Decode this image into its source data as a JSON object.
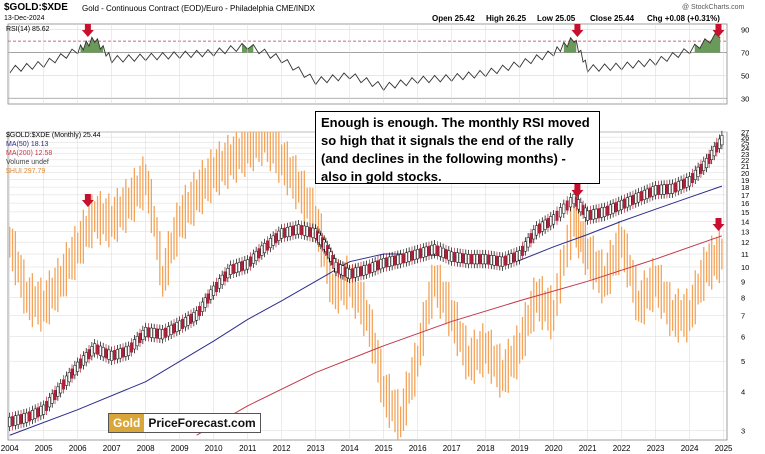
{
  "header": {
    "ticker": "$GOLD:$XDE",
    "description": "Gold - Continuous Contract (EOD)/Euro - Philadelphia CME/INDX",
    "date": "13-Dec-2024",
    "ohlc": {
      "open": "Open 25.42",
      "high": "High 26.25",
      "low": "Low 25.05",
      "close": "Close 25.44",
      "chg": "Chg +0.08 (+0.31%)"
    },
    "credit": "@ StockCharts.com"
  },
  "rsi_panel": {
    "label": "RSI(14) 85.62",
    "ticks": [
      "90",
      "70",
      "50",
      "30"
    ]
  },
  "legend": {
    "main": "$GOLD:$XDE (Monthly) 25.44",
    "ma50": "MA(50) 18.13",
    "ma200": "MA(200) 12.58",
    "volume": "Volume undef",
    "hui": "$HUI 297.79"
  },
  "callout": "Enough is enough. The monthly RSI moved so high that it signals the end of the rally (and declines in the following months) - also in gold stocks.",
  "brand": {
    "gold": "Gold",
    "rest": "PriceForecast.com"
  },
  "colors": {
    "ma50": "#2b2b8c",
    "ma200": "#c0394a",
    "hui": "#f2a45a",
    "rsi_fill": "#6a9a5a",
    "arrow": "#c8102e",
    "grid": "#d9d9d9"
  },
  "chart_data": [
    {
      "type": "line",
      "title": "RSI(14) 85.62",
      "ylim": [
        25,
        95
      ],
      "y_ticks": [
        90,
        70,
        50,
        30
      ],
      "reference_lines": [
        80,
        70,
        30
      ],
      "x": [
        2004,
        2005,
        2006,
        2006.5,
        2007,
        2008,
        2009,
        2010,
        2011,
        2012,
        2013,
        2014,
        2015,
        2016,
        2017,
        2018,
        2019,
        2020,
        2020.6,
        2021,
        2022,
        2023,
        2024,
        2024.9
      ],
      "series": [
        {
          "name": "RSI(14)",
          "values": [
            55,
            60,
            72,
            82,
            64,
            66,
            68,
            70,
            76,
            64,
            45,
            50,
            40,
            46,
            48,
            52,
            60,
            70,
            82,
            56,
            58,
            62,
            72,
            86
          ]
        }
      ]
    },
    {
      "type": "line",
      "title": "$GOLD:$XDE (Monthly) 25.44",
      "y_scale": "log",
      "ylim": [
        2.8,
        27
      ],
      "y_ticks": [
        27,
        26,
        25,
        24,
        23,
        22,
        21,
        20,
        19,
        18,
        17,
        16,
        15,
        14,
        13,
        12,
        11,
        10,
        9,
        8,
        7,
        6,
        5,
        4,
        3
      ],
      "x_ticks": [
        "2004",
        "2005",
        "2006",
        "2007",
        "2008",
        "2009",
        "2010",
        "2011",
        "2012",
        "2013",
        "2014",
        "2015",
        "2016",
        "2017",
        "2018",
        "2019",
        "2020",
        "2021",
        "2022",
        "2023",
        "2024",
        "2025"
      ],
      "xlim": [
        2003.95,
        2025.1
      ],
      "series": [
        {
          "name": "$GOLD:$XDE",
          "x": [
            2004,
            2004.5,
            2005,
            2005.5,
            2006,
            2006.5,
            2007,
            2007.5,
            2008,
            2008.5,
            2009,
            2009.5,
            2010,
            2010.5,
            2011,
            2011.5,
            2012,
            2012.5,
            2013,
            2013.3,
            2013.6,
            2014,
            2014.5,
            2015,
            2015.5,
            2016,
            2016.5,
            2017,
            2017.5,
            2018,
            2018.5,
            2019,
            2019.5,
            2020,
            2020.6,
            2021,
            2021.5,
            2022,
            2022.5,
            2023,
            2023.5,
            2024,
            2024.5,
            2024.95
          ],
          "values": [
            3.2,
            3.3,
            3.5,
            4.1,
            4.8,
            5.5,
            5.2,
            5.4,
            6.2,
            6.1,
            6.5,
            7.0,
            8.4,
            9.8,
            10.2,
            11.5,
            12.8,
            13.2,
            12.8,
            11.6,
            10.0,
            9.5,
            9.8,
            10.3,
            10.6,
            11.0,
            11.4,
            10.8,
            10.6,
            10.6,
            10.4,
            10.9,
            13.1,
            14.2,
            16.5,
            14.6,
            15.0,
            15.8,
            16.7,
            17.6,
            17.8,
            18.8,
            21.5,
            25.44
          ]
        },
        {
          "name": "MA(50)",
          "x": [
            2004,
            2006,
            2008,
            2010,
            2011,
            2012,
            2013,
            2014,
            2015,
            2016,
            2017,
            2018,
            2019,
            2020,
            2021,
            2022,
            2023,
            2024,
            2024.95
          ],
          "values": [
            2.9,
            3.5,
            4.3,
            5.8,
            6.8,
            7.8,
            9.0,
            10.4,
            11.0,
            11.0,
            10.8,
            10.4,
            10.5,
            11.6,
            12.7,
            14.0,
            15.3,
            16.7,
            18.13
          ]
        },
        {
          "name": "MA(200)",
          "x": [
            2009.5,
            2011,
            2013,
            2015,
            2017,
            2019,
            2021,
            2023,
            2024.95
          ],
          "values": [
            2.9,
            3.6,
            4.6,
            5.6,
            6.7,
            7.8,
            9.0,
            10.6,
            12.58
          ]
        },
        {
          "name": "$HUI",
          "x": [
            2004,
            2004.5,
            2005,
            2005.5,
            2006,
            2006.5,
            2007,
            2007.5,
            2008,
            2008.5,
            2009,
            2009.5,
            2010,
            2010.5,
            2011,
            2011.5,
            2012,
            2012.5,
            2013,
            2013.5,
            2014,
            2014.5,
            2015,
            2015.5,
            2016,
            2016.5,
            2017,
            2017.5,
            2018,
            2018.5,
            2019,
            2019.5,
            2020,
            2020.6,
            2021,
            2021.5,
            2022,
            2022.5,
            2023,
            2023.5,
            2024,
            2024.5,
            2024.95
          ],
          "values": [
            12.0,
            8.0,
            7.5,
            9.0,
            11.5,
            14.5,
            14.0,
            16.0,
            19.0,
            9.0,
            14.0,
            17.0,
            20.0,
            22.0,
            24.0,
            26.0,
            22.0,
            18.0,
            14.0,
            8.5,
            9.0,
            7.0,
            4.0,
            3.2,
            5.0,
            9.0,
            7.0,
            5.0,
            5.5,
            4.5,
            5.5,
            8.0,
            7.0,
            14.0,
            11.0,
            9.0,
            12.0,
            7.5,
            9.0,
            7.0,
            7.0,
            10.0,
            11.0
          ]
        }
      ],
      "arrows_at_x": [
        2006.3,
        2020.7,
        2024.85
      ]
    }
  ]
}
